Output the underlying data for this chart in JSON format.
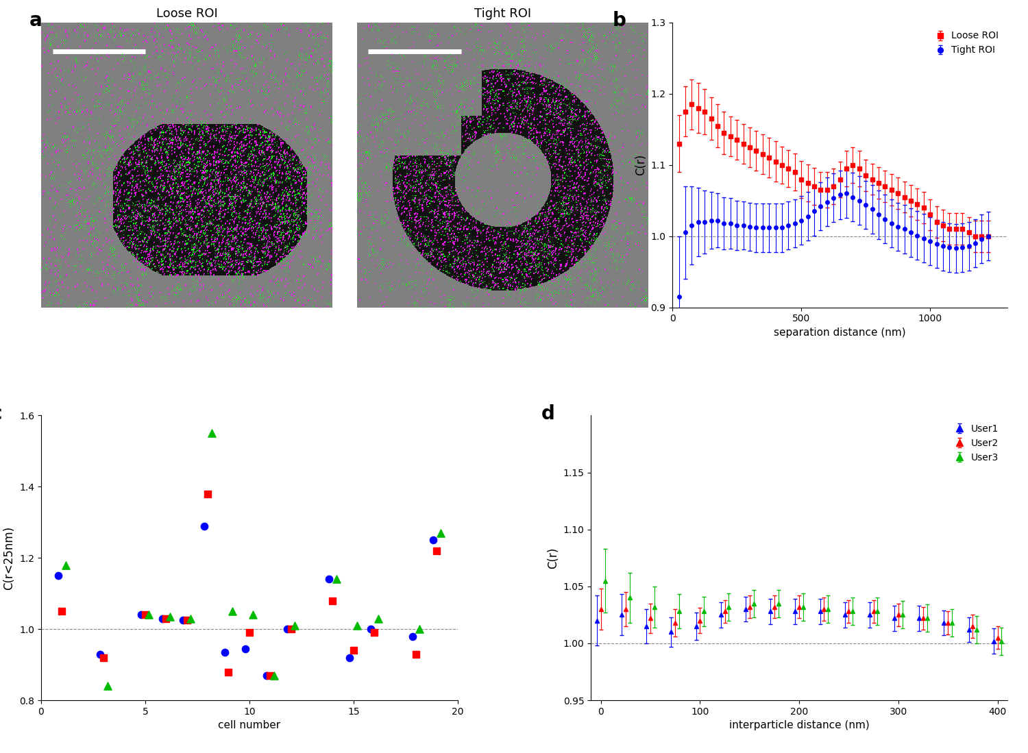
{
  "panel_b": {
    "loose_x": [
      25,
      50,
      75,
      100,
      125,
      150,
      175,
      200,
      225,
      250,
      275,
      300,
      325,
      350,
      375,
      400,
      425,
      450,
      475,
      500,
      525,
      550,
      575,
      600,
      625,
      650,
      675,
      700,
      725,
      750,
      775,
      800,
      825,
      850,
      875,
      900,
      925,
      950,
      975,
      1000,
      1025,
      1050,
      1075,
      1100,
      1125,
      1150,
      1175,
      1200,
      1225
    ],
    "loose_y": [
      1.13,
      1.175,
      1.185,
      1.18,
      1.175,
      1.165,
      1.155,
      1.145,
      1.14,
      1.135,
      1.13,
      1.125,
      1.12,
      1.115,
      1.11,
      1.105,
      1.1,
      1.095,
      1.09,
      1.08,
      1.075,
      1.07,
      1.065,
      1.065,
      1.07,
      1.08,
      1.095,
      1.1,
      1.095,
      1.085,
      1.08,
      1.075,
      1.07,
      1.065,
      1.06,
      1.055,
      1.05,
      1.045,
      1.04,
      1.03,
      1.02,
      1.015,
      1.01,
      1.01,
      1.01,
      1.005,
      1.0,
      1.0,
      1.0
    ],
    "loose_yerr": [
      0.04,
      0.035,
      0.035,
      0.035,
      0.032,
      0.03,
      0.03,
      0.03,
      0.028,
      0.028,
      0.028,
      0.028,
      0.028,
      0.028,
      0.028,
      0.028,
      0.026,
      0.026,
      0.026,
      0.026,
      0.026,
      0.026,
      0.025,
      0.025,
      0.025,
      0.025,
      0.025,
      0.025,
      0.025,
      0.022,
      0.022,
      0.022,
      0.022,
      0.022,
      0.022,
      0.022,
      0.022,
      0.022,
      0.022,
      0.022,
      0.022,
      0.022,
      0.022,
      0.022,
      0.022,
      0.022,
      0.022,
      0.022,
      0.022
    ],
    "tight_x": [
      25,
      50,
      75,
      100,
      125,
      150,
      175,
      200,
      225,
      250,
      275,
      300,
      325,
      350,
      375,
      400,
      425,
      450,
      475,
      500,
      525,
      550,
      575,
      600,
      625,
      650,
      675,
      700,
      725,
      750,
      775,
      800,
      825,
      850,
      875,
      900,
      925,
      950,
      975,
      1000,
      1025,
      1050,
      1075,
      1100,
      1125,
      1150,
      1175,
      1200,
      1225
    ],
    "tight_y": [
      0.915,
      1.005,
      1.015,
      1.02,
      1.02,
      1.022,
      1.022,
      1.018,
      1.018,
      1.015,
      1.015,
      1.013,
      1.012,
      1.012,
      1.012,
      1.012,
      1.012,
      1.015,
      1.018,
      1.022,
      1.028,
      1.035,
      1.042,
      1.048,
      1.054,
      1.058,
      1.06,
      1.055,
      1.05,
      1.044,
      1.038,
      1.03,
      1.024,
      1.018,
      1.013,
      1.01,
      1.005,
      1.001,
      0.997,
      0.993,
      0.989,
      0.986,
      0.984,
      0.983,
      0.984,
      0.986,
      0.99,
      0.996,
      1.0
    ],
    "tight_yerr": [
      0.085,
      0.065,
      0.055,
      0.048,
      0.044,
      0.04,
      0.038,
      0.037,
      0.036,
      0.035,
      0.034,
      0.034,
      0.034,
      0.034,
      0.034,
      0.034,
      0.034,
      0.034,
      0.034,
      0.034,
      0.034,
      0.034,
      0.034,
      0.034,
      0.034,
      0.034,
      0.034,
      0.034,
      0.034,
      0.034,
      0.034,
      0.034,
      0.034,
      0.034,
      0.034,
      0.034,
      0.034,
      0.034,
      0.034,
      0.034,
      0.034,
      0.034,
      0.034,
      0.034,
      0.034,
      0.034,
      0.034,
      0.034,
      0.034
    ],
    "ylim": [
      0.9,
      1.3
    ],
    "xlim": [
      0,
      1300
    ],
    "xlabel": "separation distance (nm)",
    "ylabel": "C(r)",
    "yticks": [
      0.9,
      1.0,
      1.1,
      1.2,
      1.3
    ],
    "xticks": [
      0,
      500,
      1000
    ]
  },
  "panel_c": {
    "blue_x": [
      1,
      3,
      5,
      6,
      7,
      8,
      9,
      10,
      11,
      12,
      14,
      15,
      16,
      18,
      19
    ],
    "blue_y": [
      1.15,
      0.93,
      1.04,
      1.03,
      1.025,
      1.29,
      0.935,
      0.945,
      0.87,
      1.0,
      1.14,
      0.92,
      1.0,
      0.98,
      1.25
    ],
    "red_x": [
      1,
      3,
      5,
      6,
      7,
      8,
      9,
      10,
      11,
      12,
      14,
      15,
      16,
      18,
      19
    ],
    "red_y": [
      1.05,
      0.92,
      1.04,
      1.03,
      1.025,
      1.38,
      0.88,
      0.99,
      0.87,
      1.0,
      1.08,
      0.94,
      0.99,
      0.93,
      1.22
    ],
    "green_x": [
      1,
      3,
      5,
      6,
      7,
      8,
      9,
      10,
      11,
      12,
      14,
      15,
      16,
      18,
      19
    ],
    "green_y": [
      1.18,
      0.84,
      1.04,
      1.035,
      1.03,
      1.55,
      1.05,
      1.04,
      0.87,
      1.01,
      1.14,
      1.01,
      1.03,
      1.0,
      1.27
    ],
    "ylim": [
      0.8,
      1.6
    ],
    "xlim": [
      0,
      20
    ],
    "xlabel": "cell number",
    "ylabel": "C(r<25nm)",
    "yticks": [
      0.8,
      1.0,
      1.2,
      1.4,
      1.6
    ],
    "xticks": [
      0,
      5,
      10,
      15,
      20
    ]
  },
  "panel_d": {
    "x_vals": [
      0,
      25,
      50,
      75,
      100,
      125,
      150,
      175,
      200,
      225,
      250,
      275,
      300,
      325,
      350,
      375,
      400
    ],
    "user1_y": [
      1.02,
      1.025,
      1.015,
      1.01,
      1.015,
      1.025,
      1.03,
      1.028,
      1.028,
      1.028,
      1.025,
      1.025,
      1.022,
      1.022,
      1.018,
      1.012,
      1.002
    ],
    "user1_yerr": [
      0.022,
      0.018,
      0.015,
      0.013,
      0.012,
      0.011,
      0.011,
      0.011,
      0.011,
      0.011,
      0.011,
      0.011,
      0.011,
      0.011,
      0.011,
      0.011,
      0.011
    ],
    "user2_y": [
      1.03,
      1.03,
      1.022,
      1.018,
      1.02,
      1.028,
      1.032,
      1.032,
      1.032,
      1.03,
      1.028,
      1.028,
      1.025,
      1.022,
      1.018,
      1.015,
      1.005
    ],
    "user2_yerr": [
      0.018,
      0.015,
      0.013,
      0.012,
      0.011,
      0.01,
      0.01,
      0.01,
      0.01,
      0.01,
      0.01,
      0.01,
      0.01,
      0.01,
      0.01,
      0.01,
      0.01
    ],
    "user3_y": [
      1.055,
      1.04,
      1.032,
      1.028,
      1.028,
      1.032,
      1.035,
      1.035,
      1.032,
      1.03,
      1.028,
      1.028,
      1.025,
      1.022,
      1.018,
      1.012,
      1.002
    ],
    "user3_yerr": [
      0.028,
      0.022,
      0.018,
      0.015,
      0.013,
      0.012,
      0.012,
      0.012,
      0.012,
      0.012,
      0.012,
      0.012,
      0.012,
      0.012,
      0.012,
      0.012,
      0.012
    ],
    "ylim": [
      0.95,
      1.2
    ],
    "xlim": [
      -10,
      410
    ],
    "xlabel": "interparticle distance (nm)",
    "ylabel": "C(r)",
    "yticks": [
      0.95,
      1.0,
      1.05,
      1.1,
      1.15
    ],
    "xticks": [
      0,
      100,
      200,
      300,
      400
    ]
  },
  "colors": {
    "red": "#FF0000",
    "blue": "#0000FF",
    "green": "#00BB00",
    "dashed_gray": "#888888",
    "gray_bg": [
      0.502,
      0.502,
      0.502
    ]
  },
  "img_gray": 0.502,
  "img_black": 0.07,
  "img_magenta": [
    0.95,
    0.1,
    0.95
  ],
  "img_green": [
    0.1,
    0.95,
    0.1
  ]
}
